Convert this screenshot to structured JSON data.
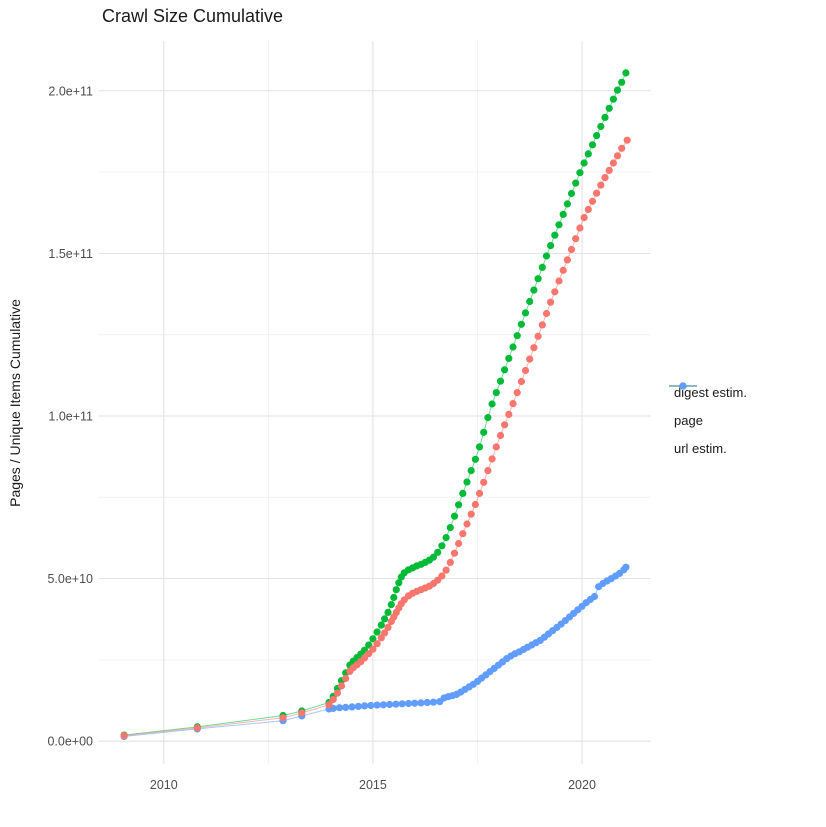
{
  "title": "Crawl Size Cumulative",
  "ylabel": "Pages / Unique Items Cumulative",
  "chart_data": {
    "type": "scatter",
    "subtype": "line+point cumulative time series",
    "title": "Crawl Size Cumulative",
    "xlabel": "",
    "ylabel": "Pages / Unique Items Cumulative",
    "grid": "on",
    "background": "#ffffff",
    "major_grid_color": "#e2e2e2",
    "minor_grid_color": "#f0f0f0",
    "x_axis": {
      "range": [
        2008.45,
        2021.65
      ],
      "ticks": [
        2010,
        2015,
        2020
      ],
      "tick_labels": [
        "2010",
        "2015",
        "2020"
      ],
      "minor_ticks": [
        2012.5,
        2017.5
      ]
    },
    "y_axis": {
      "range": [
        -7000000000.0,
        215300000000.0
      ],
      "ticks": [
        0,
        50000000000.0,
        100000000000.0,
        150000000000.0,
        200000000000.0
      ],
      "tick_labels": [
        "0.0e+00",
        "5.0e+10",
        "1.0e+11",
        "1.5e+11",
        "2.0e+11"
      ],
      "minor_ticks": [
        25000000000.0,
        75000000000.0,
        125000000000.0,
        175000000000.0
      ]
    },
    "legend": {
      "position": "right"
    },
    "series": [
      {
        "name": "digest estim.",
        "color": "#F8766D",
        "points": [
          [
            2009.05,
            1700000000.0
          ],
          [
            2010.8,
            4100000000.0
          ],
          [
            2012.85,
            7200000000.0
          ],
          [
            2013.3,
            8700000000.0
          ],
          [
            2013.95,
            11200000000.0
          ],
          [
            2014.05,
            12800000000.0
          ],
          [
            2014.15,
            14800000000.0
          ],
          [
            2014.25,
            17000000000.0
          ],
          [
            2014.35,
            19300000000.0
          ],
          [
            2014.45,
            21500000000.0
          ],
          [
            2014.53,
            22600000000.0
          ],
          [
            2014.62,
            23500000000.0
          ],
          [
            2014.71,
            24500000000.0
          ],
          [
            2014.8,
            25600000000.0
          ],
          [
            2014.9,
            26900000000.0
          ],
          [
            2015.0,
            28300000000.0
          ],
          [
            2015.1,
            30000000000.0
          ],
          [
            2015.2,
            31800000000.0
          ],
          [
            2015.28,
            33300000000.0
          ],
          [
            2015.36,
            35000000000.0
          ],
          [
            2015.44,
            36800000000.0
          ],
          [
            2015.5,
            38200000000.0
          ],
          [
            2015.56,
            39600000000.0
          ],
          [
            2015.62,
            41000000000.0
          ],
          [
            2015.68,
            42300000000.0
          ],
          [
            2015.75,
            43500000000.0
          ],
          [
            2015.85,
            44700000000.0
          ],
          [
            2015.95,
            45500000000.0
          ],
          [
            2016.05,
            46100000000.0
          ],
          [
            2016.15,
            46600000000.0
          ],
          [
            2016.25,
            47100000000.0
          ],
          [
            2016.35,
            47700000000.0
          ],
          [
            2016.45,
            48500000000.0
          ],
          [
            2016.55,
            49500000000.0
          ],
          [
            2016.65,
            50800000000.0
          ],
          [
            2016.75,
            52600000000.0
          ],
          [
            2016.85,
            55000000000.0
          ],
          [
            2016.95,
            57800000000.0
          ],
          [
            2017.05,
            60800000000.0
          ],
          [
            2017.15,
            63800000000.0
          ],
          [
            2017.25,
            66800000000.0
          ],
          [
            2017.35,
            69800000000.0
          ],
          [
            2017.45,
            72800000000.0
          ],
          [
            2017.55,
            76200000000.0
          ],
          [
            2017.65,
            79600000000.0
          ],
          [
            2017.75,
            83200000000.0
          ],
          [
            2017.85,
            86800000000.0
          ],
          [
            2017.95,
            90500000000.0
          ],
          [
            2018.05,
            94000000000.0
          ],
          [
            2018.15,
            97300000000.0
          ],
          [
            2018.25,
            100500000000.0
          ],
          [
            2018.35,
            103800000000.0
          ],
          [
            2018.45,
            107200000000.0
          ],
          [
            2018.55,
            110600000000.0
          ],
          [
            2018.65,
            114000000000.0
          ],
          [
            2018.75,
            117500000000.0
          ],
          [
            2018.85,
            121000000000.0
          ],
          [
            2018.95,
            124500000000.0
          ],
          [
            2019.05,
            128000000000.0
          ],
          [
            2019.15,
            131500000000.0
          ],
          [
            2019.25,
            135000000000.0
          ],
          [
            2019.35,
            138200000000.0
          ],
          [
            2019.45,
            141500000000.0
          ],
          [
            2019.55,
            144800000000.0
          ],
          [
            2019.65,
            148000000000.0
          ],
          [
            2019.75,
            151200000000.0
          ],
          [
            2019.85,
            154500000000.0
          ],
          [
            2019.95,
            157800000000.0
          ],
          [
            2020.05,
            161000000000.0
          ],
          [
            2020.15,
            163500000000.0
          ],
          [
            2020.25,
            166000000000.0
          ],
          [
            2020.35,
            168500000000.0
          ],
          [
            2020.45,
            171000000000.0
          ],
          [
            2020.55,
            173300000000.0
          ],
          [
            2020.65,
            175500000000.0
          ],
          [
            2020.75,
            177800000000.0
          ],
          [
            2020.85,
            180000000000.0
          ],
          [
            2020.95,
            182300000000.0
          ],
          [
            2021.08,
            184800000000.0
          ]
        ]
      },
      {
        "name": "page",
        "color": "#00BA38",
        "points": [
          [
            2009.05,
            1900000000.0
          ],
          [
            2010.8,
            4400000000.0
          ],
          [
            2012.85,
            7900000000.0
          ],
          [
            2013.3,
            9300000000.0
          ],
          [
            2013.95,
            11900000000.0
          ],
          [
            2014.05,
            13800000000.0
          ],
          [
            2014.15,
            16200000000.0
          ],
          [
            2014.25,
            18600000000.0
          ],
          [
            2014.35,
            21000000000.0
          ],
          [
            2014.45,
            23400000000.0
          ],
          [
            2014.53,
            24600000000.0
          ],
          [
            2014.62,
            25700000000.0
          ],
          [
            2014.71,
            26800000000.0
          ],
          [
            2014.8,
            28000000000.0
          ],
          [
            2014.9,
            29600000000.0
          ],
          [
            2015.0,
            31500000000.0
          ],
          [
            2015.1,
            33600000000.0
          ],
          [
            2015.2,
            35700000000.0
          ],
          [
            2015.28,
            37600000000.0
          ],
          [
            2015.36,
            39600000000.0
          ],
          [
            2015.44,
            42000000000.0
          ],
          [
            2015.5,
            44200000000.0
          ],
          [
            2015.56,
            46600000000.0
          ],
          [
            2015.62,
            48700000000.0
          ],
          [
            2015.68,
            50500000000.0
          ],
          [
            2015.75,
            51800000000.0
          ],
          [
            2015.85,
            52700000000.0
          ],
          [
            2015.95,
            53300000000.0
          ],
          [
            2016.05,
            53900000000.0
          ],
          [
            2016.15,
            54400000000.0
          ],
          [
            2016.25,
            55000000000.0
          ],
          [
            2016.35,
            55700000000.0
          ],
          [
            2016.45,
            56600000000.0
          ],
          [
            2016.55,
            58100000000.0
          ],
          [
            2016.65,
            60100000000.0
          ],
          [
            2016.75,
            62600000000.0
          ],
          [
            2016.85,
            65700000000.0
          ],
          [
            2016.95,
            69200000000.0
          ],
          [
            2017.05,
            72700000000.0
          ],
          [
            2017.15,
            76200000000.0
          ],
          [
            2017.25,
            79700000000.0
          ],
          [
            2017.35,
            83200000000.0
          ],
          [
            2017.45,
            86700000000.0
          ],
          [
            2017.55,
            90500000000.0
          ],
          [
            2017.65,
            95000000000.0
          ],
          [
            2017.75,
            99500000000.0
          ],
          [
            2017.85,
            103700000000.0
          ],
          [
            2017.95,
            107200000000.0
          ],
          [
            2018.05,
            110700000000.0
          ],
          [
            2018.15,
            114200000000.0
          ],
          [
            2018.25,
            117700000000.0
          ],
          [
            2018.35,
            121200000000.0
          ],
          [
            2018.45,
            124700000000.0
          ],
          [
            2018.55,
            128200000000.0
          ],
          [
            2018.65,
            131700000000.0
          ],
          [
            2018.75,
            135200000000.0
          ],
          [
            2018.85,
            138700000000.0
          ],
          [
            2018.95,
            142200000000.0
          ],
          [
            2019.05,
            145700000000.0
          ],
          [
            2019.15,
            149200000000.0
          ],
          [
            2019.25,
            152400000000.0
          ],
          [
            2019.35,
            155600000000.0
          ],
          [
            2019.45,
            158800000000.0
          ],
          [
            2019.55,
            162000000000.0
          ],
          [
            2019.65,
            165200000000.0
          ],
          [
            2019.75,
            168400000000.0
          ],
          [
            2019.85,
            171600000000.0
          ],
          [
            2019.95,
            174800000000.0
          ],
          [
            2020.05,
            177800000000.0
          ],
          [
            2020.15,
            180600000000.0
          ],
          [
            2020.25,
            183400000000.0
          ],
          [
            2020.35,
            186200000000.0
          ],
          [
            2020.45,
            189000000000.0
          ],
          [
            2020.55,
            191800000000.0
          ],
          [
            2020.65,
            194600000000.0
          ],
          [
            2020.75,
            197400000000.0
          ],
          [
            2020.85,
            200200000000.0
          ],
          [
            2020.95,
            202600000000.0
          ],
          [
            2021.05,
            205500000000.0
          ]
        ]
      },
      {
        "name": "url estim.",
        "color": "#619CFF",
        "points": [
          [
            2009.05,
            1500000000.0
          ],
          [
            2010.8,
            3800000000.0
          ],
          [
            2012.85,
            6300000000.0
          ],
          [
            2013.3,
            7800000000.0
          ],
          [
            2013.95,
            9900000000.0
          ],
          [
            2014.05,
            10100000000.0
          ],
          [
            2014.2,
            10300000000.0
          ],
          [
            2014.35,
            10400000000.0
          ],
          [
            2014.5,
            10550000000.0
          ],
          [
            2014.65,
            10700000000.0
          ],
          [
            2014.8,
            10850000000.0
          ],
          [
            2014.95,
            11000000000.0
          ],
          [
            2015.1,
            11100000000.0
          ],
          [
            2015.25,
            11200000000.0
          ],
          [
            2015.4,
            11300000000.0
          ],
          [
            2015.55,
            11400000000.0
          ],
          [
            2015.7,
            11500000000.0
          ],
          [
            2015.85,
            11600000000.0
          ],
          [
            2016.0,
            11700000000.0
          ],
          [
            2016.15,
            11800000000.0
          ],
          [
            2016.3,
            11900000000.0
          ],
          [
            2016.45,
            12000000000.0
          ],
          [
            2016.6,
            12200000000.0
          ],
          [
            2016.7,
            13300000000.0
          ],
          [
            2016.8,
            13700000000.0
          ],
          [
            2016.9,
            14000000000.0
          ],
          [
            2017.0,
            14400000000.0
          ],
          [
            2017.1,
            15100000000.0
          ],
          [
            2017.2,
            15900000000.0
          ],
          [
            2017.3,
            16700000000.0
          ],
          [
            2017.4,
            17500000000.0
          ],
          [
            2017.5,
            18400000000.0
          ],
          [
            2017.6,
            19400000000.0
          ],
          [
            2017.7,
            20400000000.0
          ],
          [
            2017.8,
            21400000000.0
          ],
          [
            2017.9,
            22400000000.0
          ],
          [
            2018.0,
            23400000000.0
          ],
          [
            2018.1,
            24400000000.0
          ],
          [
            2018.2,
            25400000000.0
          ],
          [
            2018.3,
            26200000000.0
          ],
          [
            2018.4,
            26900000000.0
          ],
          [
            2018.5,
            27500000000.0
          ],
          [
            2018.6,
            28200000000.0
          ],
          [
            2018.7,
            28900000000.0
          ],
          [
            2018.8,
            29600000000.0
          ],
          [
            2018.9,
            30300000000.0
          ],
          [
            2019.0,
            31000000000.0
          ],
          [
            2019.1,
            32000000000.0
          ],
          [
            2019.2,
            33000000000.0
          ],
          [
            2019.3,
            34000000000.0
          ],
          [
            2019.4,
            35000000000.0
          ],
          [
            2019.5,
            36000000000.0
          ],
          [
            2019.6,
            37100000000.0
          ],
          [
            2019.7,
            38200000000.0
          ],
          [
            2019.8,
            39300000000.0
          ],
          [
            2019.9,
            40400000000.0
          ],
          [
            2020.0,
            41500000000.0
          ],
          [
            2020.1,
            42600000000.0
          ],
          [
            2020.2,
            43600000000.0
          ],
          [
            2020.3,
            44500000000.0
          ],
          [
            2020.4,
            47500000000.0
          ],
          [
            2020.5,
            48500000000.0
          ],
          [
            2020.6,
            49300000000.0
          ],
          [
            2020.7,
            50000000000.0
          ],
          [
            2020.8,
            50800000000.0
          ],
          [
            2020.9,
            51600000000.0
          ],
          [
            2021.0,
            52700000000.0
          ],
          [
            2021.05,
            53500000000.0
          ]
        ]
      }
    ]
  }
}
